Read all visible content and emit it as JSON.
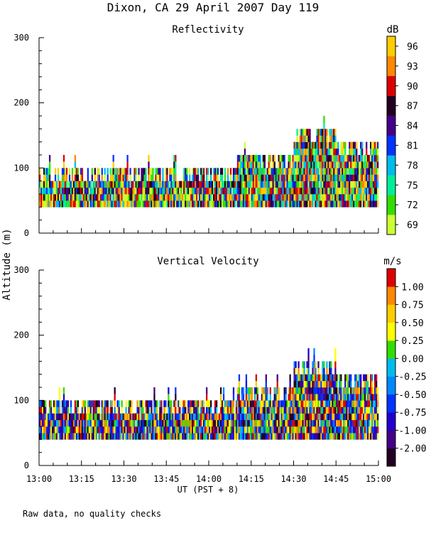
{
  "figure_title": "Dixon, CA 29 April 2007  Day 119",
  "shared_ylabel": "Altitude (m)",
  "footnote": "Raw data, no quality checks",
  "chart_data": [
    {
      "type": "heatmap",
      "title": "Reflectivity",
      "colorbar_unit": "dB",
      "ylabel": "Altitude (m)",
      "ylim": [
        0,
        300
      ],
      "y_ticks": [
        "0",
        "100",
        "200",
        "300"
      ],
      "colorbar_labels": [
        "69",
        "72",
        "75",
        "78",
        "81",
        "84",
        "87",
        "90",
        "93",
        "96"
      ],
      "colors": [
        "#ccff33",
        "#33dd00",
        "#00ee99",
        "#00bbee",
        "#0033ff",
        "#440088",
        "#220022",
        "#dd0000",
        "#ff8800",
        "#ffcc00"
      ],
      "data_extent": {
        "time_range": [
          "13:00",
          "15:00"
        ],
        "bottom_altitude": 40,
        "top_altitude_by_period": [
          {
            "from": "13:00",
            "to": "14:10",
            "top": 100
          },
          {
            "from": "14:10",
            "to": "14:30",
            "top": 120
          },
          {
            "from": "14:30",
            "to": "14:45",
            "top": 160
          },
          {
            "from": "14:45",
            "to": "15:00",
            "top": 140
          }
        ]
      }
    },
    {
      "type": "heatmap",
      "title": "Vertical Velocity",
      "colorbar_unit": "m/s",
      "xlabel": "UT  (PST + 8)",
      "ylabel": "Altitude (m)",
      "ylim": [
        0,
        300
      ],
      "y_ticks": [
        "0",
        "100",
        "200",
        "300"
      ],
      "x_ticks": [
        "13:00",
        "13:15",
        "13:30",
        "13:45",
        "14:00",
        "14:15",
        "14:30",
        "14:45",
        "15:00"
      ],
      "colorbar_labels": [
        "-2.00",
        "-1.00",
        "-0.75",
        "-0.50",
        "-0.25",
        "0.00",
        "0.25",
        "0.50",
        "0.75",
        "1.00"
      ],
      "colors": [
        "#220022",
        "#440088",
        "#2200cc",
        "#0033ff",
        "#0088ff",
        "#00bbee",
        "#33dd00",
        "#ffff00",
        "#ffcc00",
        "#ff8800",
        "#dd0000"
      ],
      "data_extent": {
        "time_range": [
          "13:00",
          "15:00"
        ],
        "bottom_altitude": 40,
        "top_altitude_by_period": [
          {
            "from": "13:00",
            "to": "14:10",
            "top": 100
          },
          {
            "from": "14:10",
            "to": "14:30",
            "top": 120
          },
          {
            "from": "14:30",
            "to": "14:45",
            "top": 160
          },
          {
            "from": "14:45",
            "to": "15:00",
            "top": 140
          }
        ]
      }
    }
  ]
}
